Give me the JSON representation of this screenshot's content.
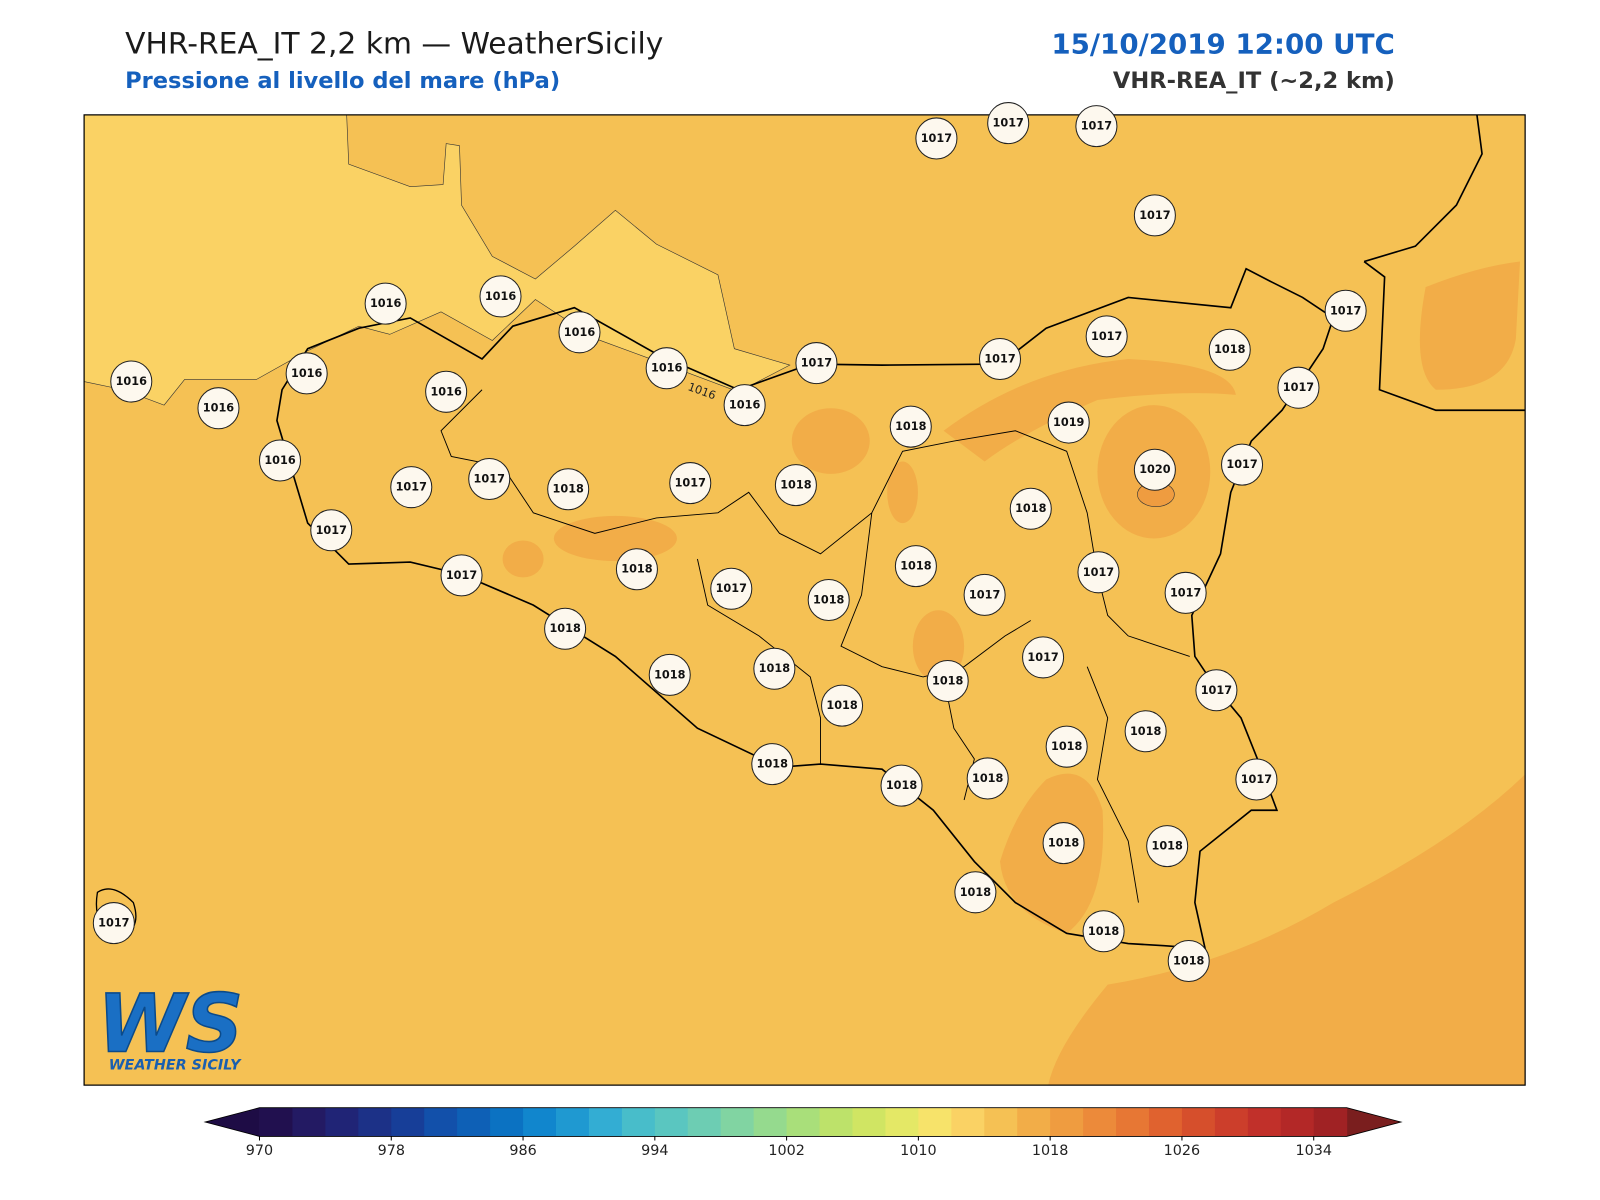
{
  "header": {
    "title": "VHR-REA_IT 2,2 km — WeatherSicily",
    "subtitle": "Pressione al livello del mare (hPa)",
    "datetime": "15/10/2019 12:00 UTC",
    "model": "VHR-REA_IT (~2,2 km)"
  },
  "map": {
    "contour_label": "1016",
    "stations": [
      1017,
      1017,
      1017,
      1017,
      1016,
      1016,
      1016,
      1016,
      1016,
      1016,
      1016,
      1016,
      1016,
      1017,
      1017,
      1017,
      1018,
      1017,
      1017,
      1018,
      1019,
      1020,
      1017,
      1016,
      1017,
      1017,
      1018,
      1017,
      1018,
      1018,
      1017,
      1018,
      1018,
      1017,
      1018,
      1017,
      1017,
      1017,
      1017,
      1018,
      1018,
      1018,
      1017,
      1018,
      1018,
      1017,
      1018,
      1018,
      1018,
      1018,
      1018,
      1017,
      1018,
      1018,
      1018,
      1018,
      1018,
      1017
    ]
  },
  "logo": {
    "mark": "WS",
    "name": "WEATHER SICILY"
  },
  "colorbar": {
    "range": [
      970,
      1036
    ],
    "ticks": [
      970,
      978,
      986,
      994,
      1002,
      1010,
      1018,
      1026,
      1034
    ],
    "under": "#1e0c45",
    "over": "#7a1e1e",
    "colors": [
      "#21104f",
      "#231a63",
      "#202476",
      "#1c3187",
      "#173e98",
      "#1250aa",
      "#0e60b6",
      "#0b72c2",
      "#1186cd",
      "#1f99d1",
      "#33add3",
      "#48bdca",
      "#5ac6c0",
      "#6dcdb3",
      "#81d4a2",
      "#95da8e",
      "#a9df7a",
      "#bde26a",
      "#d0e563",
      "#e4e866",
      "#f7e36a",
      "#fad264",
      "#f5c154",
      "#f2ad48",
      "#ef9c40",
      "#ec8a3a",
      "#e77734",
      "#e0622f",
      "#d64f2c",
      "#cc3e2b",
      "#c1302a",
      "#b32827",
      "#a02224"
    ]
  }
}
